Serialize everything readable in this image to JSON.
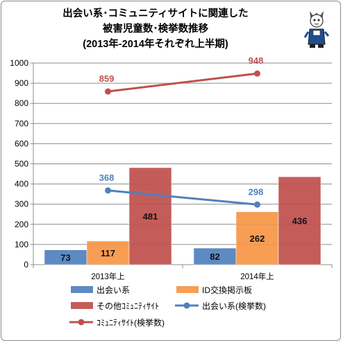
{
  "chart_data": {
    "type": "bar",
    "title": [
      "出会い系･コミュニティサイトに関連した",
      "被害児童数･検挙数推移",
      "(2013年-2014年それぞれ上半期)"
    ],
    "categories": [
      "2013年上",
      "2014年上"
    ],
    "ylim": [
      0,
      1000
    ],
    "yticks": [
      0,
      100,
      200,
      300,
      400,
      500,
      600,
      700,
      800,
      900,
      1000
    ],
    "grid": true,
    "legend_position": "bottom",
    "bar_series": [
      {
        "name": "出会い系",
        "values": [
          73,
          82
        ],
        "color": "#4f81bd"
      },
      {
        "name": "ID交換掲示板",
        "values": [
          117,
          262
        ],
        "color": "#f79646"
      },
      {
        "name": "その他ｺﾐｭﾆﾃｨｻｲﾄ",
        "values": [
          481,
          436
        ],
        "color": "#c0504d"
      }
    ],
    "line_series": [
      {
        "name": "出会い系(検挙数)",
        "values": [
          368,
          298
        ],
        "color": "#4f81bd"
      },
      {
        "name": "ｺﾐｭﾆﾃｨｻｲﾄ(検挙数)",
        "values": [
          859,
          948
        ],
        "color": "#c0504d"
      }
    ],
    "legend": [
      {
        "label": "出会い系",
        "kind": "bar",
        "color": "#4f81bd"
      },
      {
        "label": "ID交換掲示板",
        "kind": "bar",
        "color": "#f79646"
      },
      {
        "label": "その他ｺﾐｭﾆﾃｨｻｲﾄ",
        "kind": "bar",
        "color": "#c0504d"
      },
      {
        "label": "出会い系(検挙数)",
        "kind": "line",
        "color": "#4f81bd"
      },
      {
        "label": "ｺﾐｭﾆﾃｨｻｲﾄ(検挙数)",
        "kind": "line",
        "color": "#c0504d"
      }
    ]
  },
  "logo_icon": "mascot-character-icon"
}
